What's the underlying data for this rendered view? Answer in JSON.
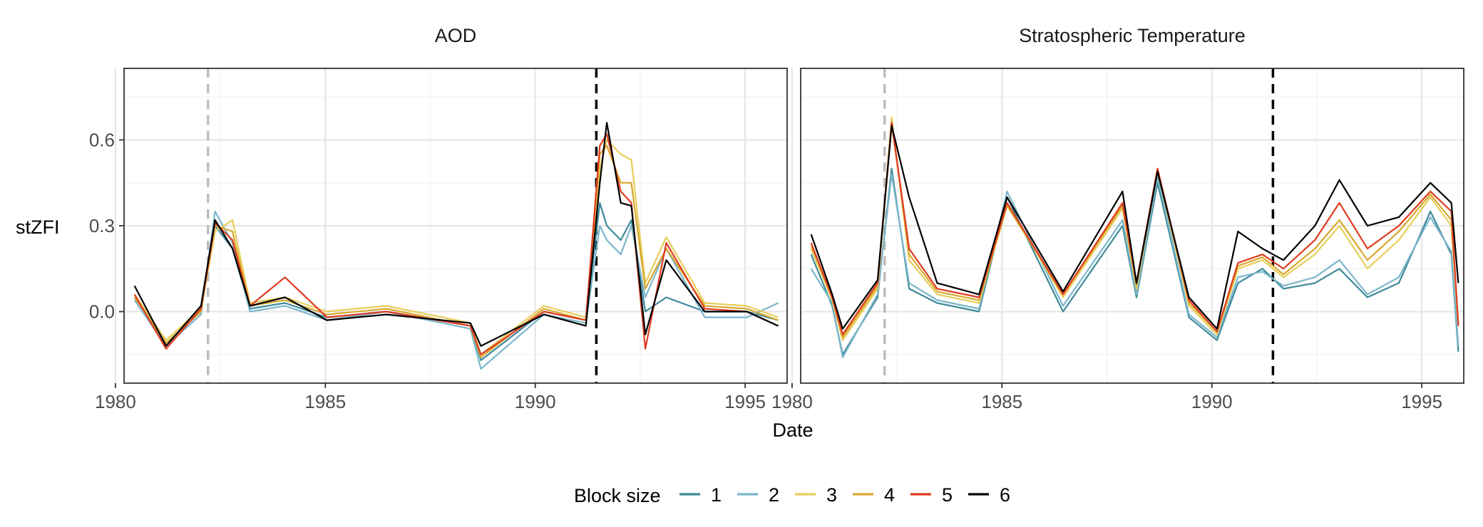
{
  "chart_data": {
    "type": "line",
    "xlabel": "Date",
    "ylabel": "stZFI",
    "x_range": [
      "1980-03-15",
      "1996-01-01"
    ],
    "y_range": [
      -0.25,
      0.85
    ],
    "x_ticks": [
      1980,
      1985,
      1990,
      1995
    ],
    "y_ticks": [
      0.0,
      0.3,
      0.6
    ],
    "y_tick_labels": [
      "0.0",
      "0.3",
      "0.6"
    ],
    "grid": true,
    "legend_position": "bottom",
    "legend": {
      "title": "Block size",
      "entries": [
        {
          "label": "1",
          "color": "#3d8a99"
        },
        {
          "label": "2",
          "color": "#7bb6cb"
        },
        {
          "label": "3",
          "color": "#e8cd5a"
        },
        {
          "label": "4",
          "color": "#d7a82d"
        },
        {
          "label": "5",
          "color": "#e03b20"
        },
        {
          "label": "6",
          "color": "#000000"
        }
      ]
    },
    "panels": [
      {
        "title": "AOD",
        "vlines": [
          {
            "date": "1982-03-15",
            "color": "#bdbdbd"
          },
          {
            "date": "1991-06-15",
            "color": "#000000"
          }
        ],
        "series": [
          {
            "name": "1",
            "x": [
              "1980-06",
              "1981-03",
              "1982-01",
              "1982-05",
              "1982-10",
              "1983-03",
              "1984-01",
              "1985-01",
              "1986-06",
              "1988-06",
              "1988-09",
              "1990-03",
              "1991-03",
              "1991-07",
              "1991-09",
              "1992-01",
              "1992-04",
              "1992-08",
              "1993-02",
              "1994-01",
              "1995-01",
              "1995-10"
            ],
            "y": [
              0.05,
              -0.11,
              0.0,
              0.3,
              0.22,
              0.01,
              0.03,
              -0.02,
              0.0,
              -0.05,
              -0.17,
              0.0,
              -0.03,
              0.38,
              0.3,
              0.25,
              0.32,
              0.0,
              0.05,
              0.0,
              0.0,
              -0.03
            ]
          },
          {
            "name": "2",
            "x": [
              "1980-06",
              "1981-03",
              "1982-01",
              "1982-05",
              "1982-10",
              "1983-03",
              "1984-01",
              "1985-01",
              "1986-06",
              "1988-06",
              "1988-09",
              "1990-03",
              "1991-03",
              "1991-07",
              "1991-09",
              "1992-01",
              "1992-04",
              "1992-08",
              "1993-02",
              "1994-01",
              "1995-01",
              "1995-10"
            ],
            "y": [
              0.04,
              -0.12,
              -0.01,
              0.35,
              0.24,
              0.0,
              0.02,
              -0.03,
              0.0,
              -0.06,
              -0.2,
              -0.01,
              -0.04,
              0.3,
              0.25,
              0.2,
              0.3,
              0.05,
              0.22,
              -0.02,
              -0.02,
              0.03
            ]
          },
          {
            "name": "3",
            "x": [
              "1980-06",
              "1981-03",
              "1982-01",
              "1982-05",
              "1982-10",
              "1983-03",
              "1984-01",
              "1985-01",
              "1986-06",
              "1988-06",
              "1988-09",
              "1990-03",
              "1991-03",
              "1991-07",
              "1991-09",
              "1992-01",
              "1992-04",
              "1992-08",
              "1993-02",
              "1994-01",
              "1995-01",
              "1995-10"
            ],
            "y": [
              0.06,
              -0.1,
              0.01,
              0.28,
              0.32,
              0.03,
              0.05,
              0.0,
              0.02,
              -0.04,
              -0.15,
              0.02,
              -0.02,
              0.5,
              0.6,
              0.55,
              0.53,
              0.1,
              0.26,
              0.03,
              0.02,
              -0.02
            ]
          },
          {
            "name": "4",
            "x": [
              "1980-06",
              "1981-03",
              "1982-01",
              "1982-05",
              "1982-10",
              "1983-03",
              "1984-01",
              "1985-01",
              "1986-06",
              "1988-06",
              "1988-09",
              "1990-03",
              "1991-03",
              "1991-07",
              "1991-09",
              "1992-01",
              "1992-04",
              "1992-08",
              "1993-02",
              "1994-01",
              "1995-01",
              "1995-10"
            ],
            "y": [
              0.05,
              -0.11,
              0.0,
              0.3,
              0.28,
              0.02,
              0.04,
              -0.01,
              0.01,
              -0.05,
              -0.16,
              0.01,
              -0.03,
              0.55,
              0.58,
              0.45,
              0.45,
              0.08,
              0.22,
              0.02,
              0.01,
              -0.03
            ]
          },
          {
            "name": "5",
            "x": [
              "1980-06",
              "1981-03",
              "1982-01",
              "1982-05",
              "1982-10",
              "1983-03",
              "1984-01",
              "1985-01",
              "1986-06",
              "1988-06",
              "1988-09",
              "1990-03",
              "1991-03",
              "1991-07",
              "1991-09",
              "1992-01",
              "1992-04",
              "1992-08",
              "1993-02",
              "1994-01",
              "1995-01",
              "1995-10"
            ],
            "y": [
              0.06,
              -0.13,
              0.01,
              0.31,
              0.25,
              0.02,
              0.12,
              -0.02,
              0.0,
              -0.05,
              -0.15,
              0.0,
              -0.03,
              0.58,
              0.62,
              0.42,
              0.38,
              -0.13,
              0.24,
              0.01,
              0.0,
              -0.05
            ]
          },
          {
            "name": "6",
            "x": [
              "1980-06",
              "1981-03",
              "1982-01",
              "1982-05",
              "1982-10",
              "1983-03",
              "1984-01",
              "1985-01",
              "1986-06",
              "1988-06",
              "1988-09",
              "1990-03",
              "1991-03",
              "1991-07",
              "1991-09",
              "1992-01",
              "1992-04",
              "1992-08",
              "1993-02",
              "1994-01",
              "1995-01",
              "1995-10"
            ],
            "y": [
              0.09,
              -0.12,
              0.02,
              0.32,
              0.22,
              0.02,
              0.05,
              -0.03,
              -0.01,
              -0.04,
              -0.12,
              -0.01,
              -0.05,
              0.45,
              0.66,
              0.38,
              0.37,
              -0.08,
              0.18,
              0.0,
              0.0,
              -0.05
            ]
          }
        ]
      },
      {
        "title": "Stratospheric Temperature",
        "vlines": [
          {
            "date": "1982-03-15",
            "color": "#bdbdbd"
          },
          {
            "date": "1991-06-15",
            "color": "#000000"
          }
        ],
        "series": [
          {
            "name": "1",
            "x": [
              "1980-06",
              "1980-12",
              "1981-03",
              "1982-01",
              "1982-05",
              "1982-10",
              "1983-06",
              "1984-06",
              "1985-02",
              "1986-06",
              "1987-11",
              "1988-03",
              "1988-09",
              "1989-06",
              "1990-02",
              "1990-08",
              "1991-03",
              "1991-09",
              "1992-06",
              "1993-01",
              "1993-09",
              "1994-06",
              "1995-03",
              "1995-09",
              "1995-11"
            ],
            "y": [
              0.2,
              0.02,
              -0.15,
              0.05,
              0.5,
              0.08,
              0.03,
              0.0,
              0.4,
              0.0,
              0.3,
              0.05,
              0.45,
              -0.02,
              -0.1,
              0.1,
              0.15,
              0.08,
              0.1,
              0.15,
              0.05,
              0.1,
              0.35,
              0.2,
              -0.14
            ]
          },
          {
            "name": "2",
            "x": [
              "1980-06",
              "1980-12",
              "1981-03",
              "1982-01",
              "1982-05",
              "1982-10",
              "1983-06",
              "1984-06",
              "1985-02",
              "1986-06",
              "1987-11",
              "1988-03",
              "1988-09",
              "1989-06",
              "1990-02",
              "1990-08",
              "1991-03",
              "1991-09",
              "1992-06",
              "1993-01",
              "1993-09",
              "1994-06",
              "1995-03",
              "1995-09",
              "1995-11"
            ],
            "y": [
              0.15,
              0.03,
              -0.16,
              0.06,
              0.48,
              0.1,
              0.04,
              0.01,
              0.42,
              0.02,
              0.32,
              0.06,
              0.47,
              -0.01,
              -0.09,
              0.12,
              0.14,
              0.09,
              0.12,
              0.18,
              0.06,
              0.12,
              0.33,
              0.21,
              -0.12
            ]
          },
          {
            "name": "3",
            "x": [
              "1980-06",
              "1980-12",
              "1981-03",
              "1982-01",
              "1982-05",
              "1982-10",
              "1983-06",
              "1984-06",
              "1985-02",
              "1986-06",
              "1987-11",
              "1988-03",
              "1988-09",
              "1989-06",
              "1990-02",
              "1990-08",
              "1991-03",
              "1991-09",
              "1992-06",
              "1993-01",
              "1993-09",
              "1994-06",
              "1995-03",
              "1995-09",
              "1995-11"
            ],
            "y": [
              0.22,
              0.04,
              -0.1,
              0.08,
              0.68,
              0.18,
              0.06,
              0.03,
              0.38,
              0.05,
              0.36,
              0.08,
              0.5,
              0.02,
              -0.08,
              0.15,
              0.18,
              0.12,
              0.2,
              0.3,
              0.15,
              0.25,
              0.4,
              0.3,
              -0.05
            ]
          },
          {
            "name": "4",
            "x": [
              "1980-06",
              "1980-12",
              "1981-03",
              "1982-01",
              "1982-05",
              "1982-10",
              "1983-06",
              "1984-06",
              "1985-02",
              "1986-06",
              "1987-11",
              "1988-03",
              "1988-09",
              "1989-06",
              "1990-02",
              "1990-08",
              "1991-03",
              "1991-09",
              "1992-06",
              "1993-01",
              "1993-09",
              "1994-06",
              "1995-03",
              "1995-09",
              "1995-11"
            ],
            "y": [
              0.23,
              0.05,
              -0.09,
              0.09,
              0.66,
              0.2,
              0.07,
              0.04,
              0.37,
              0.06,
              0.37,
              0.09,
              0.49,
              0.03,
              -0.07,
              0.16,
              0.19,
              0.13,
              0.22,
              0.32,
              0.18,
              0.28,
              0.41,
              0.32,
              -0.04
            ]
          },
          {
            "name": "5",
            "x": [
              "1980-06",
              "1980-12",
              "1981-03",
              "1982-01",
              "1982-05",
              "1982-10",
              "1983-06",
              "1984-06",
              "1985-02",
              "1986-06",
              "1987-11",
              "1988-03",
              "1988-09",
              "1989-06",
              "1990-02",
              "1990-08",
              "1991-03",
              "1991-09",
              "1992-06",
              "1993-01",
              "1993-09",
              "1994-06",
              "1995-03",
              "1995-09",
              "1995-11"
            ],
            "y": [
              0.24,
              0.05,
              -0.08,
              0.1,
              0.66,
              0.22,
              0.08,
              0.05,
              0.38,
              0.06,
              0.38,
              0.1,
              0.5,
              0.04,
              -0.07,
              0.17,
              0.2,
              0.15,
              0.25,
              0.38,
              0.22,
              0.3,
              0.42,
              0.35,
              -0.05
            ]
          },
          {
            "name": "6",
            "x": [
              "1980-06",
              "1980-12",
              "1981-03",
              "1982-01",
              "1982-05",
              "1982-10",
              "1983-06",
              "1984-06",
              "1985-02",
              "1986-06",
              "1987-11",
              "1988-03",
              "1988-09",
              "1989-06",
              "1990-02",
              "1990-08",
              "1991-03",
              "1991-09",
              "1992-06",
              "1993-01",
              "1993-09",
              "1994-06",
              "1995-03",
              "1995-09",
              "1995-11"
            ],
            "y": [
              0.27,
              0.06,
              -0.06,
              0.11,
              0.65,
              0.4,
              0.1,
              0.06,
              0.4,
              0.07,
              0.42,
              0.1,
              0.49,
              0.05,
              -0.06,
              0.28,
              0.22,
              0.18,
              0.3,
              0.46,
              0.3,
              0.33,
              0.45,
              0.38,
              0.1
            ]
          }
        ]
      }
    ]
  }
}
